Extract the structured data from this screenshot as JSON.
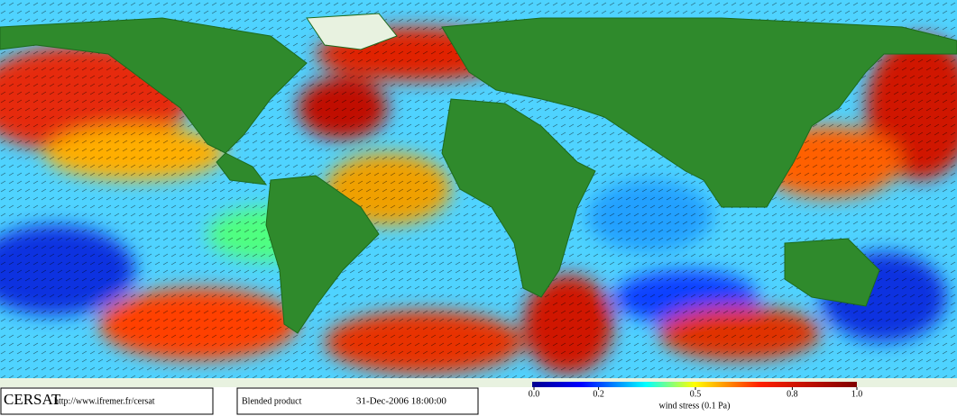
{
  "footer": {
    "logo": "CERSAT",
    "url": "http://www.ifremer.fr/cersat",
    "product": "Blended product",
    "date": "31-Dec-2006 18:00:00"
  },
  "colorbar": {
    "lim": [
      0,
      1
    ],
    "ticks": [
      {
        "value": 0,
        "label": "0.0"
      },
      0.2,
      0.5,
      0.8,
      {
        "value": 1,
        "label": "1.0"
      }
    ],
    "label": "wind stress (0.1 Pa)"
  }
}
